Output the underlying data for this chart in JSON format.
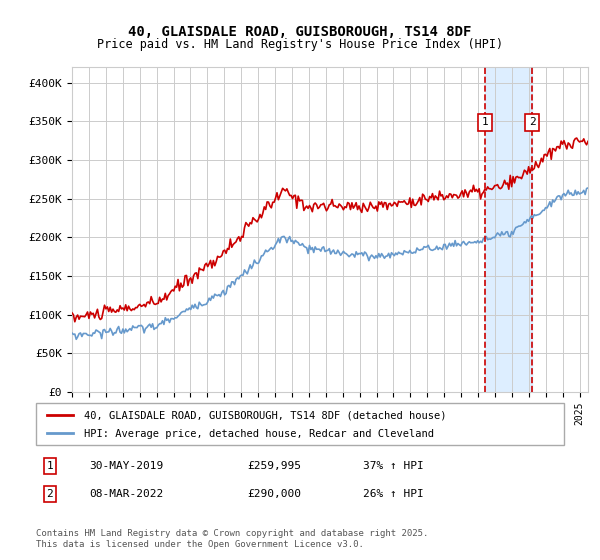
{
  "title": "40, GLAISDALE ROAD, GUISBOROUGH, TS14 8DF",
  "subtitle": "Price paid vs. HM Land Registry's House Price Index (HPI)",
  "legend_line1": "40, GLAISDALE ROAD, GUISBOROUGH, TS14 8DF (detached house)",
  "legend_line2": "HPI: Average price, detached house, Redcar and Cleveland",
  "annotation1_date": "30-MAY-2019",
  "annotation1_price": "£259,995",
  "annotation1_hpi": "37% ↑ HPI",
  "annotation2_date": "08-MAR-2022",
  "annotation2_price": "£290,000",
  "annotation2_hpi": "26% ↑ HPI",
  "footer": "Contains HM Land Registry data © Crown copyright and database right 2025.\nThis data is licensed under the Open Government Licence v3.0.",
  "red_color": "#cc0000",
  "blue_color": "#6699cc",
  "vline_color": "#cc0000",
  "shade_color": "#ddeeff",
  "background_color": "#ffffff",
  "grid_color": "#cccccc",
  "ylim": [
    0,
    420000
  ],
  "yticks": [
    0,
    50000,
    100000,
    150000,
    200000,
    250000,
    300000,
    350000,
    400000
  ],
  "ytick_labels": [
    "£0",
    "£50K",
    "£100K",
    "£150K",
    "£200K",
    "£250K",
    "£300K",
    "£350K",
    "£400K"
  ],
  "annotation1_year": 2019.42,
  "annotation2_year": 2022.19
}
